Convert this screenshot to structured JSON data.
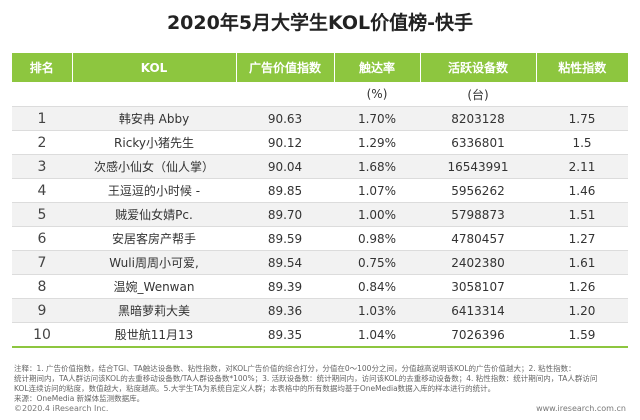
{
  "title": "2020年5月大学生KOL价值榜-快手",
  "header": {
    "rank": "排名",
    "kol": "KOL",
    "ad_index": "广告价值指数",
    "reach": "触达率",
    "active_devices": "活跃设备数",
    "stickiness": "粘性指数"
  },
  "units": {
    "reach": "(%)",
    "active_devices": "(台)"
  },
  "rows": [
    {
      "rank": "1",
      "name": "韩安冉 Abby",
      "ad_index": "90.63",
      "reach": "1.70%",
      "devices": "8203128",
      "stickiness": "1.75"
    },
    {
      "rank": "2",
      "name": "Ricky小猪先生",
      "ad_index": "90.12",
      "reach": "1.29%",
      "devices": "6336801",
      "stickiness": "1.5"
    },
    {
      "rank": "3",
      "name": "次感小仙女（仙人掌）",
      "ad_index": "90.04",
      "reach": "1.68%",
      "devices": "16543991",
      "stickiness": "2.11"
    },
    {
      "rank": "4",
      "name": "王逗逗的小时候 -",
      "ad_index": "89.85",
      "reach": "1.07%",
      "devices": "5956262",
      "stickiness": "1.46"
    },
    {
      "rank": "5",
      "name": "贼爱仙女婧Pc.",
      "ad_index": "89.70",
      "reach": "1.00%",
      "devices": "5798873",
      "stickiness": "1.51"
    },
    {
      "rank": "6",
      "name": "安居客房产帮手",
      "ad_index": "89.59",
      "reach": "0.98%",
      "devices": "4780457",
      "stickiness": "1.27"
    },
    {
      "rank": "7",
      "name": "Wuli周周小可爱,",
      "ad_index": "89.54",
      "reach": "0.75%",
      "devices": "2402380",
      "stickiness": "1.61"
    },
    {
      "rank": "8",
      "name": "温婉_Wenwan",
      "ad_index": "89.39",
      "reach": "0.84%",
      "devices": "3058107",
      "stickiness": "1.26"
    },
    {
      "rank": "9",
      "name": "黑暗萝莉大美",
      "ad_index": "89.36",
      "reach": "1.03%",
      "devices": "6413314",
      "stickiness": "1.20"
    },
    {
      "rank": "10",
      "name": "殷世航11月13",
      "ad_index": "89.35",
      "reach": "1.04%",
      "devices": "7026396",
      "stickiness": "1.59"
    }
  ],
  "notes": {
    "line1": "注释：1. 广告价值指数，结合TGI、TA触达设备数、粘性指数，对KOL广告价值的综合打分，分值在0～100分之间，分值越高说明该KOL的广告价值越大；2. 粘性指数：",
    "line2": "统计期间内，TA人群访问该KOL的去重移动设备数/TA人群设备数*100%；3. 活跃设备数：统计期间内，访问该KOL的去重移动设备数；4. 粘性指数：统计期间内，TA人群访问",
    "line3": "KOL连续访问的粘度，数值越大，粘度越高。5.大学生TA为系统自定义人群；本表格中的所有数据均基于OneMedia数据入库的样本进行的统计。",
    "line4": "来源：OneMedia 新媒体监测数据库。"
  },
  "footer": {
    "copyright": "©2020.4 iResearch Inc.",
    "website": "www.iresearch.com.cn"
  },
  "colors": {
    "header_green": "#8dc63f",
    "alt_row": "#f2f2f2"
  }
}
